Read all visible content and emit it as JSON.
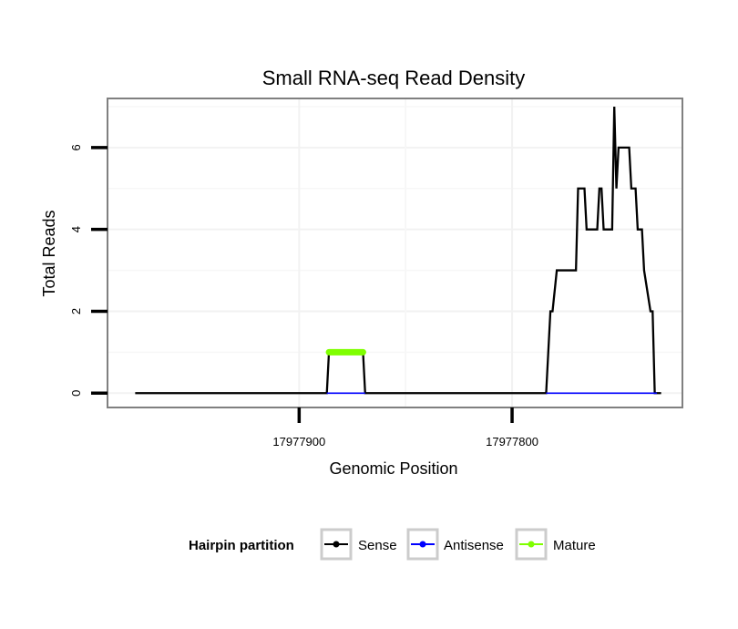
{
  "chart_data": {
    "type": "line",
    "title": "Small RNA-seq Read Density",
    "xlabel": "Genomic Position",
    "ylabel": "Total Reads",
    "x_reversed": true,
    "xlim": [
      17977990,
      17977720
    ],
    "ylim": [
      -0.35,
      7.2
    ],
    "x_ticks": [
      17977900,
      17977800
    ],
    "x_tick_labels": [
      "17977900",
      "17977800"
    ],
    "y_ticks": [
      0,
      2,
      4,
      6
    ],
    "y_tick_labels": [
      "0",
      "2",
      "4",
      "6"
    ],
    "grid": true,
    "legend": {
      "title": "Hairpin partition",
      "position": "bottom",
      "entries": [
        {
          "label": "Sense",
          "color": "#000000"
        },
        {
          "label": "Antisense",
          "color": "#0000ff"
        },
        {
          "label": "Mature",
          "color": "#7fff00"
        }
      ]
    },
    "series": [
      {
        "name": "Sense",
        "color": "#000000",
        "x": [
          17977977,
          17977887,
          17977886,
          17977870,
          17977869,
          17977784,
          17977782,
          17977781,
          17977779,
          17977770,
          17977769,
          17977766,
          17977765,
          17977760,
          17977759,
          17977758,
          17977757,
          17977753,
          17977752,
          17977751,
          17977750,
          17977745,
          17977744,
          17977742,
          17977741,
          17977739,
          17977738,
          17977735,
          17977734,
          17977733,
          17977732,
          17977730
        ],
        "y": [
          0,
          0,
          1,
          1,
          0,
          0,
          2,
          2,
          3,
          3,
          5,
          5,
          4,
          4,
          5,
          5,
          4,
          4,
          7,
          5,
          6,
          6,
          5,
          5,
          4,
          4,
          3,
          2,
          2,
          0,
          0,
          0
        ]
      },
      {
        "name": "Antisense",
        "color": "#0000ff",
        "x": [
          17977887,
          17977869,
          17977784,
          17977732
        ],
        "y": [
          0,
          0,
          0,
          0
        ],
        "segments": [
          [
            17977887,
            17977869
          ],
          [
            17977784,
            17977732
          ]
        ]
      },
      {
        "name": "Mature",
        "color": "#7fff00",
        "x": [
          17977886,
          17977870
        ],
        "y": [
          1,
          1
        ]
      }
    ]
  }
}
